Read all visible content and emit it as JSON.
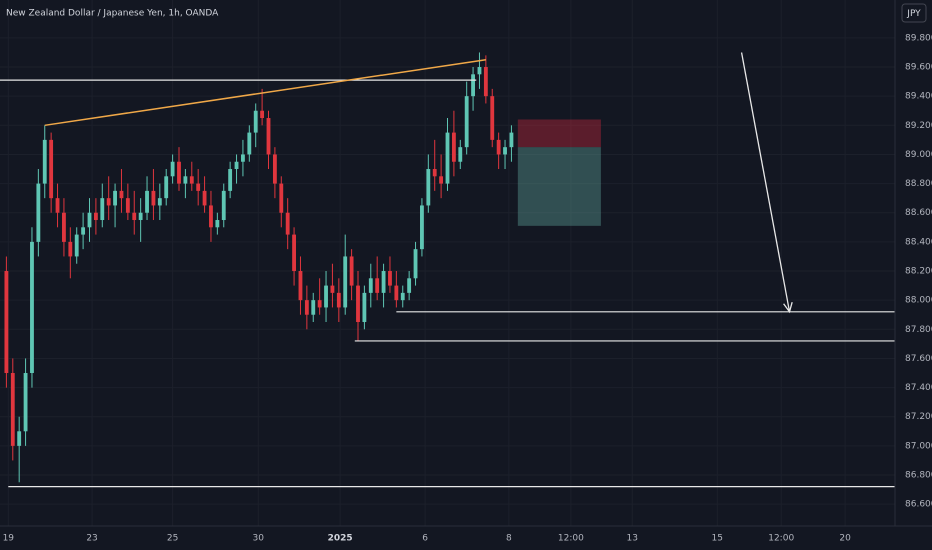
{
  "chart_data": {
    "type": "candlestick",
    "title": "New Zealand Dollar / Japanese Yen, 1h, OANDA",
    "currency": "JPY",
    "up_color": "#5fc6b4",
    "down_color": "#e0363e",
    "xlim": [
      -1,
      139
    ],
    "ylim": [
      86.45,
      90.06
    ],
    "yticks": [
      {
        "value": 86.6,
        "label": "86.600"
      },
      {
        "value": 86.8,
        "label": "86.800"
      },
      {
        "value": 87.0,
        "label": "87.000"
      },
      {
        "value": 87.2,
        "label": "87.200"
      },
      {
        "value": 87.4,
        "label": "87.400"
      },
      {
        "value": 87.6,
        "label": "87.600"
      },
      {
        "value": 87.8,
        "label": "87.800"
      },
      {
        "value": 88.0,
        "label": "88.000"
      },
      {
        "value": 88.2,
        "label": "88.200"
      },
      {
        "value": 88.4,
        "label": "88.400"
      },
      {
        "value": 88.6,
        "label": "88.600"
      },
      {
        "value": 88.8,
        "label": "88.800"
      },
      {
        "value": 89.0,
        "label": "89.000"
      },
      {
        "value": 89.2,
        "label": "89.200"
      },
      {
        "value": 89.4,
        "label": "89.400"
      },
      {
        "value": 89.6,
        "label": "89.600"
      },
      {
        "value": 89.8,
        "label": "89.800"
      }
    ],
    "xticks": [
      {
        "value": 0.3,
        "label": "19"
      },
      {
        "value": 13.4,
        "label": "23"
      },
      {
        "value": 26,
        "label": "25"
      },
      {
        "value": 39.4,
        "label": "30"
      },
      {
        "value": 52.2,
        "label": "2025"
      },
      {
        "value": 65.5,
        "label": "6"
      },
      {
        "value": 78.6,
        "label": "8"
      },
      {
        "value": 88.3,
        "label": "12:00"
      },
      {
        "value": 97.9,
        "label": "13"
      },
      {
        "value": 111.2,
        "label": "15"
      },
      {
        "value": 121.2,
        "label": "12:00"
      },
      {
        "value": 131.2,
        "label": "20"
      }
    ],
    "ohlc": [
      [
        88.2,
        88.3,
        87.4,
        87.5
      ],
      [
        87.5,
        87.6,
        86.9,
        87.0
      ],
      [
        87.0,
        87.2,
        86.75,
        87.1
      ],
      [
        87.1,
        87.6,
        87.0,
        87.5
      ],
      [
        87.5,
        88.5,
        87.4,
        88.4
      ],
      [
        88.4,
        88.9,
        88.3,
        88.8
      ],
      [
        88.8,
        89.2,
        88.7,
        89.1
      ],
      [
        89.1,
        89.15,
        88.6,
        88.7
      ],
      [
        88.7,
        88.8,
        88.5,
        88.6
      ],
      [
        88.6,
        88.7,
        88.3,
        88.4
      ],
      [
        88.4,
        88.5,
        88.15,
        88.3
      ],
      [
        88.3,
        88.5,
        88.25,
        88.45
      ],
      [
        88.45,
        88.6,
        88.35,
        88.5
      ],
      [
        88.5,
        88.7,
        88.4,
        88.6
      ],
      [
        88.6,
        88.7,
        88.45,
        88.55
      ],
      [
        88.55,
        88.8,
        88.5,
        88.7
      ],
      [
        88.7,
        88.85,
        88.55,
        88.65
      ],
      [
        88.65,
        88.8,
        88.5,
        88.75
      ],
      [
        88.75,
        88.9,
        88.6,
        88.7
      ],
      [
        88.7,
        88.8,
        88.55,
        88.6
      ],
      [
        88.6,
        88.75,
        88.45,
        88.55
      ],
      [
        88.55,
        88.7,
        88.4,
        88.6
      ],
      [
        88.6,
        88.85,
        88.55,
        88.75
      ],
      [
        88.75,
        88.9,
        88.55,
        88.65
      ],
      [
        88.65,
        88.8,
        88.55,
        88.7
      ],
      [
        88.7,
        88.9,
        88.65,
        88.85
      ],
      [
        88.85,
        89.0,
        88.8,
        88.95
      ],
      [
        88.95,
        89.05,
        88.75,
        88.8
      ],
      [
        88.8,
        88.9,
        88.7,
        88.85
      ],
      [
        88.85,
        88.95,
        88.75,
        88.8
      ],
      [
        88.8,
        88.9,
        88.65,
        88.75
      ],
      [
        88.75,
        88.85,
        88.6,
        88.65
      ],
      [
        88.65,
        88.75,
        88.4,
        88.5
      ],
      [
        88.5,
        88.6,
        88.45,
        88.55
      ],
      [
        88.55,
        88.8,
        88.5,
        88.75
      ],
      [
        88.75,
        88.95,
        88.7,
        88.9
      ],
      [
        88.9,
        89.0,
        88.8,
        88.95
      ],
      [
        88.95,
        89.1,
        88.85,
        89.0
      ],
      [
        89.0,
        89.2,
        88.95,
        89.15
      ],
      [
        89.15,
        89.35,
        89.05,
        89.3
      ],
      [
        89.3,
        89.45,
        89.2,
        89.25
      ],
      [
        89.25,
        89.3,
        88.9,
        89.0
      ],
      [
        89.0,
        89.05,
        88.7,
        88.8
      ],
      [
        88.8,
        88.85,
        88.5,
        88.6
      ],
      [
        88.6,
        88.7,
        88.35,
        88.45
      ],
      [
        88.45,
        88.5,
        88.1,
        88.2
      ],
      [
        88.2,
        88.3,
        87.9,
        88.0
      ],
      [
        88.0,
        88.1,
        87.8,
        87.9
      ],
      [
        87.9,
        88.05,
        87.85,
        88.0
      ],
      [
        88.0,
        88.15,
        87.9,
        87.95
      ],
      [
        87.95,
        88.2,
        87.85,
        88.1
      ],
      [
        88.1,
        88.25,
        87.95,
        88.05
      ],
      [
        88.05,
        88.15,
        87.85,
        87.95
      ],
      [
        87.95,
        88.45,
        87.9,
        88.3
      ],
      [
        88.3,
        88.35,
        88.0,
        88.1
      ],
      [
        88.1,
        88.2,
        87.72,
        87.85
      ],
      [
        87.85,
        88.1,
        87.8,
        88.05
      ],
      [
        88.05,
        88.25,
        87.95,
        88.15
      ],
      [
        88.15,
        88.3,
        88.0,
        88.05
      ],
      [
        88.05,
        88.25,
        87.95,
        88.2
      ],
      [
        88.2,
        88.3,
        88.05,
        88.1
      ],
      [
        88.1,
        88.2,
        87.95,
        88.0
      ],
      [
        88.0,
        88.1,
        87.95,
        88.05
      ],
      [
        88.05,
        88.2,
        88.0,
        88.15
      ],
      [
        88.15,
        88.4,
        88.1,
        88.35
      ],
      [
        88.35,
        88.7,
        88.3,
        88.65
      ],
      [
        88.65,
        89.0,
        88.6,
        88.9
      ],
      [
        88.9,
        89.1,
        88.75,
        88.85
      ],
      [
        88.85,
        89.0,
        88.7,
        88.8
      ],
      [
        88.8,
        89.25,
        88.75,
        89.15
      ],
      [
        89.15,
        89.3,
        88.85,
        88.95
      ],
      [
        88.95,
        89.1,
        88.9,
        89.05
      ],
      [
        89.05,
        89.5,
        89.0,
        89.4
      ],
      [
        89.4,
        89.6,
        89.3,
        89.55
      ],
      [
        89.55,
        89.7,
        89.45,
        89.6
      ],
      [
        89.6,
        89.68,
        89.35,
        89.4
      ],
      [
        89.4,
        89.45,
        89.05,
        89.1
      ],
      [
        89.1,
        89.15,
        88.9,
        89.0
      ],
      [
        89.0,
        89.1,
        88.9,
        89.05
      ],
      [
        89.05,
        89.2,
        88.95,
        89.15
      ]
    ],
    "hlines": [
      {
        "value": 89.51,
        "from": -1,
        "to": 73.5
      },
      {
        "value": 87.92,
        "from": 61,
        "to": 139
      },
      {
        "value": 87.72,
        "from": 54.5,
        "to": 139
      },
      {
        "value": 86.72,
        "from": 0.3,
        "to": 139
      }
    ],
    "trendline": {
      "color": "#f0a848",
      "x": [
        6,
        75
      ],
      "y": [
        89.2,
        89.65
      ]
    },
    "arrow": {
      "x": [
        115,
        122.5
      ],
      "y": [
        89.7,
        87.92
      ]
    },
    "position": {
      "x": [
        80,
        93
      ],
      "stop": 89.24,
      "entry": 89.05,
      "target": 88.51
    }
  }
}
